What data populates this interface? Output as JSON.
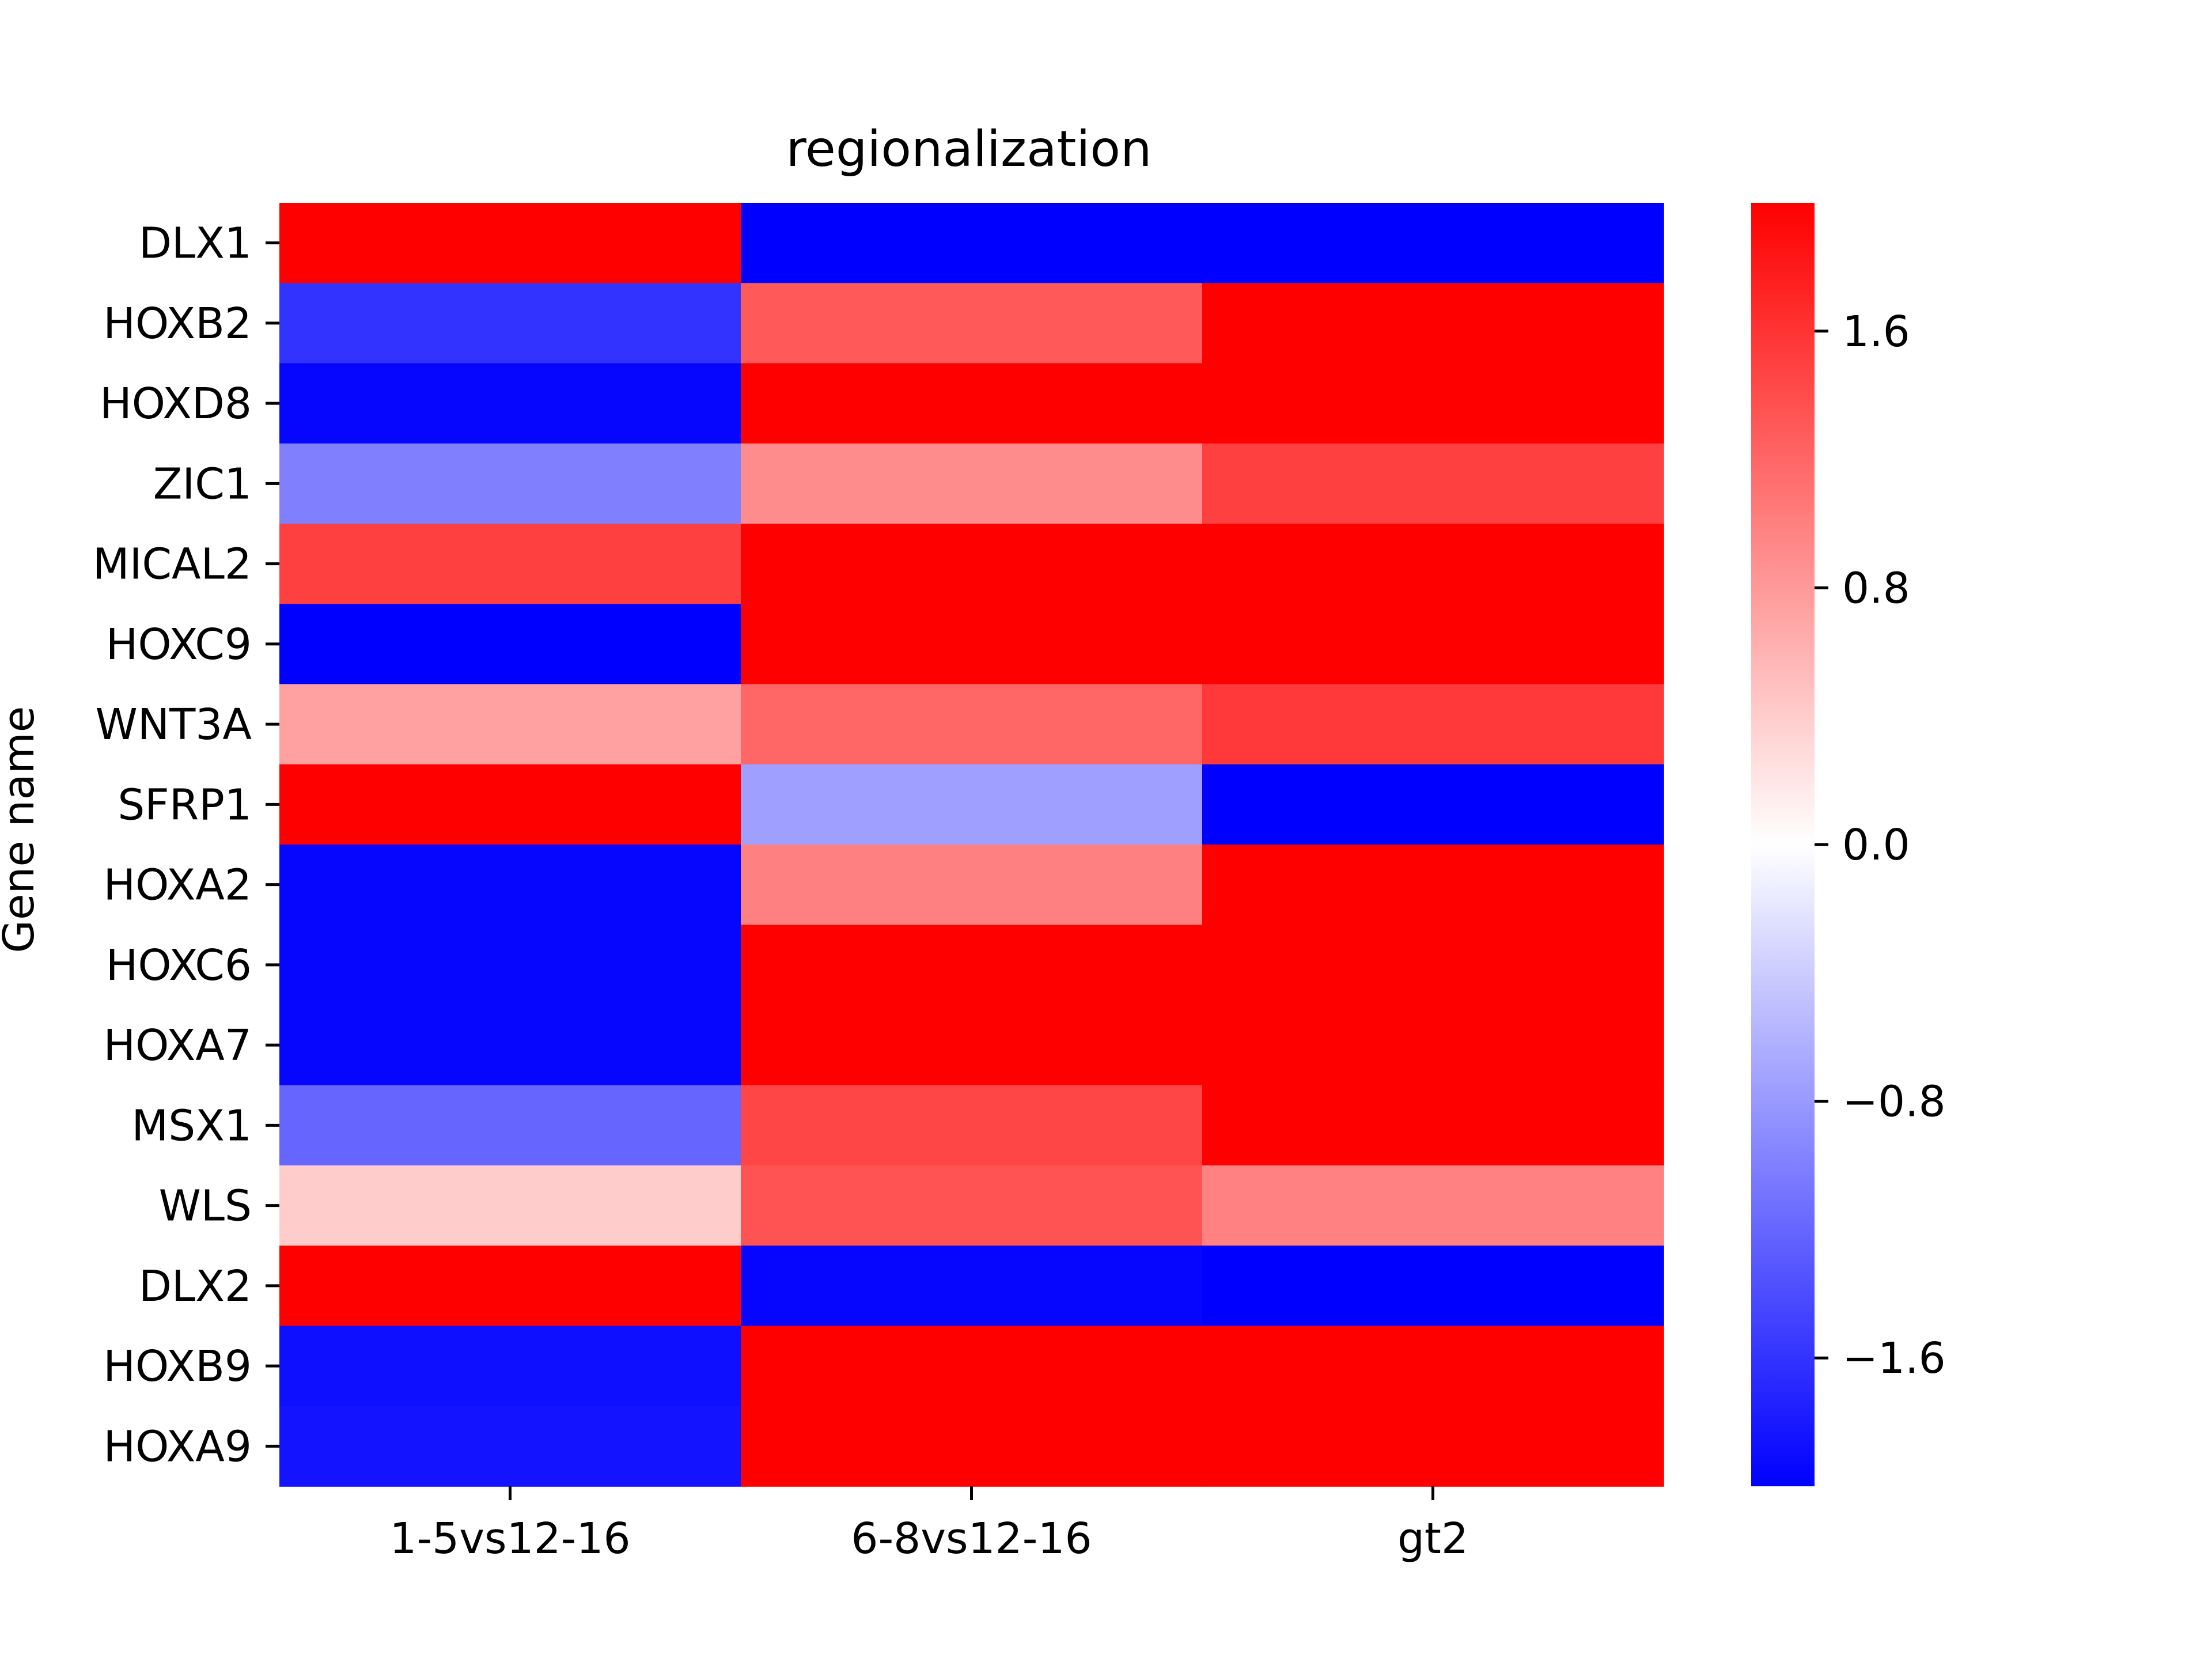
{
  "chart_data": {
    "type": "heatmap",
    "title": "regionalization",
    "xlabel": "",
    "ylabel": "Gene name",
    "columns": [
      "1-5vs12-16",
      "6-8vs12-16",
      "gt2"
    ],
    "rows": [
      "DLX1",
      "HOXB2",
      "HOXD8",
      "ZIC1",
      "MICAL2",
      "HOXC9",
      "WNT3A",
      "SFRP1",
      "HOXA2",
      "HOXC6",
      "HOXA7",
      "MSX1",
      "WLS",
      "DLX2",
      "HOXB9",
      "HOXA9"
    ],
    "values": [
      [
        2.0,
        -2.0,
        -2.0
      ],
      [
        -1.6,
        1.3,
        2.0
      ],
      [
        -1.95,
        2.0,
        2.0
      ],
      [
        -1.0,
        0.9,
        1.5
      ],
      [
        1.5,
        2.0,
        2.0
      ],
      [
        -2.0,
        2.0,
        2.0
      ],
      [
        0.74,
        1.2,
        1.55
      ],
      [
        2.0,
        -0.75,
        -2.0
      ],
      [
        -1.95,
        1.0,
        2.0
      ],
      [
        -1.95,
        2.0,
        2.0
      ],
      [
        -1.95,
        2.0,
        2.0
      ],
      [
        -1.2,
        1.45,
        2.0
      ],
      [
        0.4,
        1.35,
        0.99
      ],
      [
        2.0,
        -1.95,
        -2.0
      ],
      [
        -1.88,
        2.0,
        2.0
      ],
      [
        -1.85,
        2.0,
        2.0
      ]
    ],
    "colormap": "bwr",
    "colors": {
      "low": "#0000ff",
      "mid": "#ffffff",
      "high": "#ff0000"
    },
    "vmin": -2.0,
    "vmax": 2.0,
    "colorbar": {
      "ticks": [
        1.6,
        0.8,
        0.0,
        -0.8,
        -1.6
      ],
      "tick_labels": [
        "1.6",
        "0.8",
        "0.0",
        "−0.8",
        "−1.6"
      ]
    },
    "legend": "colorbar-right",
    "grid": false
  }
}
